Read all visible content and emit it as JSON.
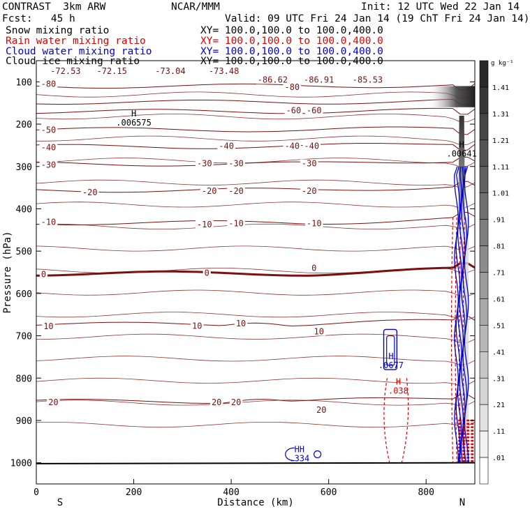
{
  "header": {
    "model": "CONTRAST  3km ARW",
    "org": "NCAR/MMM",
    "init": "Init: 12 UTC Wed 22 Jan 14",
    "fcst": "Fcst:   45 h",
    "valid": "Valid: 09 UTC Fri 24 Jan 14 (19 ChT Fri 24 Jan 14)"
  },
  "fields": [
    {
      "name": "Snow mixing ratio",
      "xy": "XY= 100.0,100.0 to 100.0,400.0",
      "color": "#000000"
    },
    {
      "name": "Rain water mixing ratio",
      "xy": "XY= 100.0,100.0 to 100.0,400.0",
      "color": "#e00000"
    },
    {
      "name": "Cloud water mixing ratio",
      "xy": "XY= 100.0,100.0 to 100.0,400.0",
      "color": "#0000d0"
    },
    {
      "name": "Cloud ice mixing ratio",
      "xy": "XY= 100.0,100.0 to 100.0,400.0",
      "color": "#000000"
    }
  ],
  "colors": {
    "temperature": "#7a1010",
    "rain": "#e00000",
    "cloud": "#0000d0"
  },
  "chart_data": {
    "type": "contour",
    "xlabel": "Distance (km)",
    "ylabel": "Pressure (hPa)",
    "xlim": [
      0,
      900
    ],
    "ylim": [
      1050,
      50
    ],
    "x_ticks": [
      "0",
      "200",
      "400",
      "600",
      "800"
    ],
    "y_ticks": [
      "100",
      "200",
      "300",
      "400",
      "500",
      "600",
      "700",
      "800",
      "900",
      "1000"
    ],
    "x_ticks_values": [
      0,
      200,
      400,
      600,
      800
    ],
    "y_ticks_values": [
      100,
      200,
      300,
      400,
      500,
      600,
      700,
      800,
      900,
      1000
    ],
    "direction_left": "S",
    "direction_right": "N",
    "colorbar": {
      "unit": "g kg⁻¹",
      "labels": [
        "1.41",
        "1.31",
        "1.21",
        "1.11",
        "1.01",
        ".91",
        ".81",
        ".71",
        ".61",
        ".51",
        ".41",
        ".31",
        ".21",
        ".11",
        ".01"
      ]
    },
    "temperature_levels": [
      -80,
      -70,
      -60,
      -50,
      -40,
      -30,
      -20,
      -10,
      0,
      10,
      20
    ],
    "temperature_labels": [
      {
        "text": "-72.53",
        "x": 60,
        "p": 75
      },
      {
        "text": "-72.15",
        "x": 155,
        "p": 75
      },
      {
        "text": "-73.04",
        "x": 275,
        "p": 75
      },
      {
        "text": "-73.48",
        "x": 385,
        "p": 75
      },
      {
        "text": "-86.62",
        "x": 485,
        "p": 95
      },
      {
        "text": "-86.91",
        "x": 580,
        "p": 95
      },
      {
        "text": "-85.53",
        "x": 680,
        "p": 95
      },
      {
        "text": "-80",
        "x": 25,
        "p": 105
      },
      {
        "text": "-80",
        "x": 525,
        "p": 113
      },
      {
        "text": "-60",
        "x": 528,
        "p": 168
      },
      {
        "text": "-60",
        "x": 570,
        "p": 168
      },
      {
        "text": "-50",
        "x": 25,
        "p": 214
      },
      {
        "text": "-40",
        "x": 25,
        "p": 255
      },
      {
        "text": "-40",
        "x": 390,
        "p": 252
      },
      {
        "text": "-40",
        "x": 525,
        "p": 252
      },
      {
        "text": "-40",
        "x": 565,
        "p": 252
      },
      {
        "text": "-30",
        "x": 25,
        "p": 296
      },
      {
        "text": "-30",
        "x": 345,
        "p": 293
      },
      {
        "text": "-30",
        "x": 410,
        "p": 293
      },
      {
        "text": "-30",
        "x": 560,
        "p": 293
      },
      {
        "text": "-20",
        "x": 110,
        "p": 361
      },
      {
        "text": "-20",
        "x": 355,
        "p": 358
      },
      {
        "text": "-20",
        "x": 410,
        "p": 358
      },
      {
        "text": "-20",
        "x": 560,
        "p": 358
      },
      {
        "text": "-10",
        "x": 25,
        "p": 431
      },
      {
        "text": "-10",
        "x": 345,
        "p": 437
      },
      {
        "text": "-10",
        "x": 410,
        "p": 435
      },
      {
        "text": "-10",
        "x": 570,
        "p": 435
      },
      {
        "text": "0",
        "x": 15,
        "p": 555
      },
      {
        "text": "0",
        "x": 350,
        "p": 552
      },
      {
        "text": "0",
        "x": 570,
        "p": 540
      },
      {
        "text": "10",
        "x": 25,
        "p": 678
      },
      {
        "text": "10",
        "x": 330,
        "p": 677
      },
      {
        "text": "10",
        "x": 420,
        "p": 671
      },
      {
        "text": "10",
        "x": 580,
        "p": 690
      },
      {
        "text": "20",
        "x": 35,
        "p": 857
      },
      {
        "text": "20",
        "x": 370,
        "p": 857
      },
      {
        "text": "20",
        "x": 410,
        "p": 857
      },
      {
        "text": "20",
        "x": 585,
        "p": 875
      }
    ],
    "extrema": [
      {
        "type": "H",
        "value": ".006575",
        "x": 200,
        "p": 187,
        "color": "#000000"
      },
      {
        "type": "H",
        "value": ".00641",
        "x": 873,
        "p": 260,
        "color": "#000000"
      },
      {
        "type": "H",
        "value": ".0677",
        "x": 728,
        "p": 760,
        "color": "#0000d0"
      },
      {
        "type": "H",
        "value": ".038",
        "x": 743,
        "p": 820,
        "color": "#e00000"
      },
      {
        "type": "HH",
        "value": ".334",
        "x": 540,
        "p": 980,
        "color": "#0000d0"
      }
    ]
  }
}
